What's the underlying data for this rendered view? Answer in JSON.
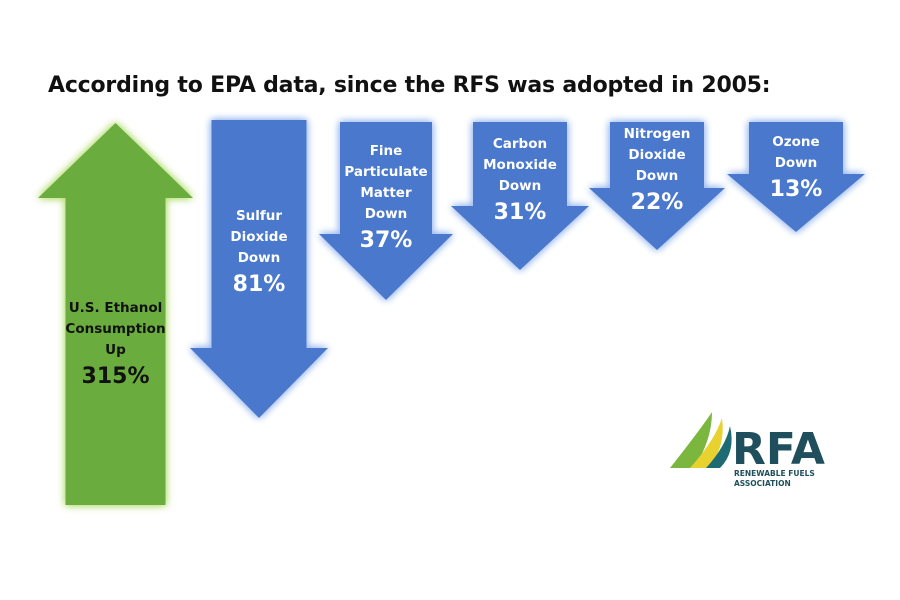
{
  "title": "According to EPA data, since the RFS was adopted in 2005:",
  "chart_data": {
    "type": "bar",
    "title": "According to EPA data, since the RFS was adopted in 2005:",
    "items": [
      {
        "label_lines": [
          "U.S. Ethanol",
          "Consumption",
          "Up"
        ],
        "value_text": "315%",
        "value": 315,
        "direction": "up"
      },
      {
        "label_lines": [
          "Sulfur",
          "Dioxide",
          "Down"
        ],
        "value_text": "81%",
        "value": -81,
        "direction": "down"
      },
      {
        "label_lines": [
          "Fine",
          "Particulate",
          "Matter",
          "Down"
        ],
        "value_text": "37%",
        "value": -37,
        "direction": "down"
      },
      {
        "label_lines": [
          "Carbon",
          "Monoxide",
          "Down"
        ],
        "value_text": "31%",
        "value": -31,
        "direction": "down"
      },
      {
        "label_lines": [
          "Nitrogen",
          "Dioxide",
          "Down"
        ],
        "value_text": "22%",
        "value": -22,
        "direction": "down"
      },
      {
        "label_lines": [
          "Ozone",
          "Down"
        ],
        "value_text": "13%",
        "value": -13,
        "direction": "down"
      }
    ],
    "colors": {
      "up": "#6aac3c",
      "up_glow": "#b8e07a",
      "down": "#4a78cc",
      "down_glow": "#9fbcf0"
    }
  },
  "logo": {
    "text": "RFA",
    "line1": "RENEWABLE FUELS",
    "line2": "ASSOCIATION",
    "colors": {
      "text": "#1f4f5c",
      "green": "#7bb73e",
      "yellow": "#e8d230",
      "teal": "#1f6b74"
    }
  }
}
